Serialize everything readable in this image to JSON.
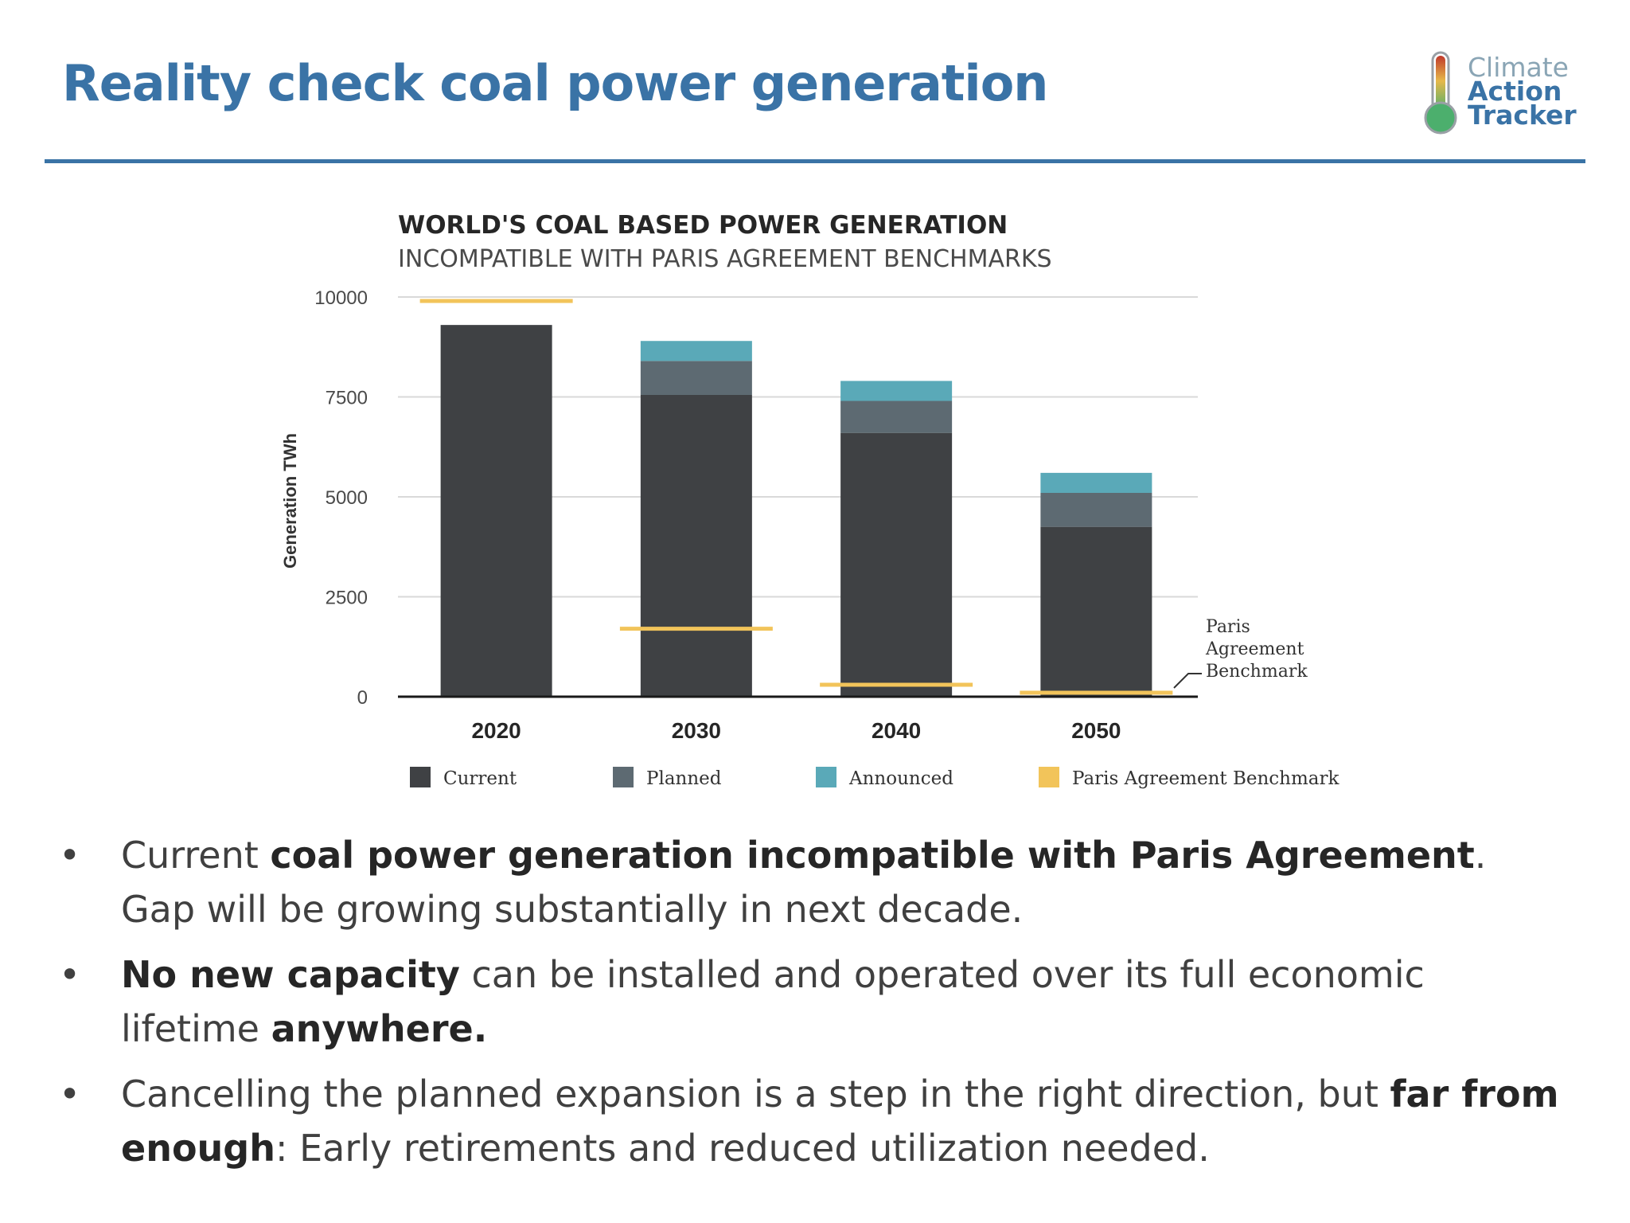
{
  "slide": {
    "title": "Reality check coal power generation",
    "logo": {
      "line1": "Climate",
      "line2": "Action",
      "line3": "Tracker"
    }
  },
  "chart_data": {
    "type": "bar",
    "stacked": true,
    "title": "WORLD'S COAL BASED POWER GENERATION",
    "subtitle": "INCOMPATIBLE WITH PARIS AGREEMENT BENCHMARKS",
    "ylabel": "Generation TWh",
    "xlabel": "",
    "ylim": [
      0,
      10000
    ],
    "yticks": [
      "10000",
      "7500",
      "5000",
      "2500",
      "0"
    ],
    "yticks_values": [
      10000,
      7500,
      5000,
      2500,
      0
    ],
    "categories": [
      "2020",
      "2030",
      "2040",
      "2050"
    ],
    "series": [
      {
        "name": "Current",
        "values": [
          9300,
          7550,
          6600,
          4250
        ],
        "color": "#3f4144"
      },
      {
        "name": "Planned",
        "values": [
          0,
          850,
          800,
          850
        ],
        "color": "#5d6a72"
      },
      {
        "name": "Announced",
        "values": [
          0,
          500,
          500,
          500
        ],
        "color": "#5aa9b8"
      }
    ],
    "benchmark": {
      "name": "Paris Agreement Benchmark",
      "values": [
        9900,
        1700,
        300,
        100
      ],
      "color": "#f2c45a"
    },
    "annotation": [
      "Paris",
      "Agreement",
      "Benchmark"
    ],
    "grid": true,
    "legend_position": "bottom"
  },
  "bullets": [
    {
      "parts": [
        {
          "text": "Current ",
          "bold": false
        },
        {
          "text": "coal power generation incompatible with  Paris Agreement",
          "bold": true
        },
        {
          "text": ". Gap will be growing substantially in next decade.",
          "bold": false
        }
      ]
    },
    {
      "parts": [
        {
          "text": "No new capacity",
          "bold": true
        },
        {
          "text": " can be installed and operated over its full economic lifetime ",
          "bold": false
        },
        {
          "text": "anywhere.",
          "bold": true
        }
      ]
    },
    {
      "parts": [
        {
          "text": "Cancelling the planned expansion is a step in the right direction, but ",
          "bold": false
        },
        {
          "text": "far from enough",
          "bold": true
        },
        {
          "text": ": Early retirements and reduced utilization needed.",
          "bold": false
        }
      ]
    }
  ],
  "bullet_symbol": "•"
}
